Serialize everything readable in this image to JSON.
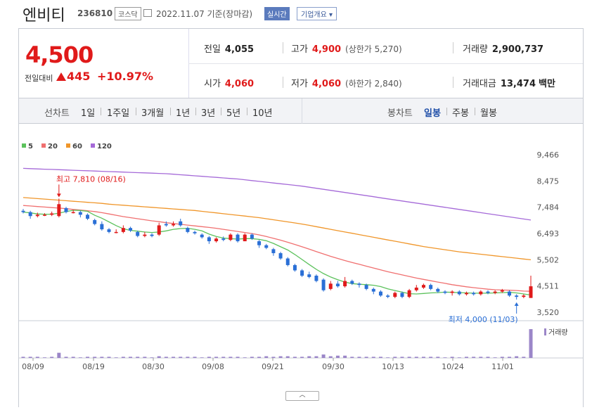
{
  "header": {
    "stock_name": "엔비티",
    "stock_code": "236810",
    "market": "코스닥",
    "date": "2022.11.07 기준(장마감)",
    "realtime_label": "실시간",
    "overview_label": "기업개요 ▾"
  },
  "quote": {
    "price": "4,500",
    "change_label": "전일대비",
    "change": "445",
    "change_pct": "+10.97%",
    "prev_close_label": "전일",
    "prev_close": "4,055",
    "high_label": "고가",
    "high": "4,900",
    "upper_limit": "(상한가 5,270)",
    "volume_label": "거래량",
    "volume": "2,900,737",
    "open_label": "시가",
    "open": "4,060",
    "low_label": "저가",
    "low": "4,060",
    "lower_limit": "(하한가 2,840)",
    "amount_label": "거래대금",
    "amount": "13,474",
    "amount_unit": "백만"
  },
  "tabs": {
    "line_label": "선차트",
    "line_periods": [
      "1일",
      "1주일",
      "3개월",
      "1년",
      "3년",
      "5년",
      "10년"
    ],
    "candle_label": "봉차트",
    "candle_periods": [
      "일봉",
      "주봉",
      "월봉"
    ],
    "active_candle": "일봉"
  },
  "colors": {
    "up": "#e01a1a",
    "down": "#2a6fd6",
    "ma5": "#5cc25c",
    "ma20": "#f07070",
    "ma60": "#f0962a",
    "ma120": "#a56ad8",
    "volume": "#9b86c8"
  },
  "chart_data": {
    "type": "candlestick",
    "legend": [
      {
        "name": "5",
        "color": "#5cc25c"
      },
      {
        "name": "20",
        "color": "#f07070"
      },
      {
        "name": "60",
        "color": "#f0962a"
      },
      {
        "name": "120",
        "color": "#a56ad8"
      }
    ],
    "y_ticks": [
      "9,466",
      "8,475",
      "7,484",
      "6,493",
      "5,502",
      "4,511",
      "3,520"
    ],
    "ylim": [
      3520,
      9466
    ],
    "x_ticks": [
      "08/09",
      "08/19",
      "08/30",
      "09/08",
      "09/21",
      "09/30",
      "10/13",
      "10/24",
      "11/01"
    ],
    "annotations": {
      "high": "최고 7,810 (08/16)",
      "low": "최저 4,000 (11/03)"
    },
    "volume_label": "거래량",
    "candles": [
      {
        "o": 7350,
        "c": 7300,
        "h": 7420,
        "l": 7250
      },
      {
        "o": 7300,
        "c": 7150,
        "h": 7350,
        "l": 7050
      },
      {
        "o": 7150,
        "c": 7200,
        "h": 7280,
        "l": 7100
      },
      {
        "o": 7200,
        "c": 7200,
        "h": 7260,
        "l": 7150
      },
      {
        "o": 7200,
        "c": 7250,
        "h": 7320,
        "l": 7150
      },
      {
        "o": 7150,
        "c": 7600,
        "h": 7810,
        "l": 7100
      },
      {
        "o": 7450,
        "c": 7300,
        "h": 7500,
        "l": 7250
      },
      {
        "o": 7300,
        "c": 7300,
        "h": 7380,
        "l": 7250
      },
      {
        "o": 7300,
        "c": 7200,
        "h": 7350,
        "l": 7100
      },
      {
        "o": 7200,
        "c": 7050,
        "h": 7250,
        "l": 7000
      },
      {
        "o": 7000,
        "c": 6850,
        "h": 7050,
        "l": 6800
      },
      {
        "o": 6850,
        "c": 6650,
        "h": 6950,
        "l": 6600
      },
      {
        "o": 6650,
        "c": 6550,
        "h": 6700,
        "l": 6500
      },
      {
        "o": 6550,
        "c": 6550,
        "h": 6650,
        "l": 6500
      },
      {
        "o": 6550,
        "c": 6700,
        "h": 6800,
        "l": 6500
      },
      {
        "o": 6700,
        "c": 6600,
        "h": 6750,
        "l": 6550
      },
      {
        "o": 6550,
        "c": 6400,
        "h": 6600,
        "l": 6350
      },
      {
        "o": 6400,
        "c": 6450,
        "h": 6550,
        "l": 6350
      },
      {
        "o": 6450,
        "c": 6400,
        "h": 6500,
        "l": 6350
      },
      {
        "o": 6450,
        "c": 6800,
        "h": 6900,
        "l": 6400
      },
      {
        "o": 6850,
        "c": 6800,
        "h": 6950,
        "l": 6750
      },
      {
        "o": 6800,
        "c": 6850,
        "h": 6950,
        "l": 6750
      },
      {
        "o": 6950,
        "c": 6800,
        "h": 7050,
        "l": 6750
      },
      {
        "o": 6700,
        "c": 6550,
        "h": 6750,
        "l": 6500
      },
      {
        "o": 6550,
        "c": 6500,
        "h": 6600,
        "l": 6450
      },
      {
        "o": 6450,
        "c": 6350,
        "h": 6500,
        "l": 6300
      },
      {
        "o": 6350,
        "c": 6200,
        "h": 6400,
        "l": 6100
      },
      {
        "o": 6200,
        "c": 6300,
        "h": 6350,
        "l": 6150
      },
      {
        "o": 6300,
        "c": 6250,
        "h": 6380,
        "l": 6200
      },
      {
        "o": 6250,
        "c": 6450,
        "h": 6500,
        "l": 6200
      },
      {
        "o": 6450,
        "c": 6200,
        "h": 6500,
        "l": 6150
      },
      {
        "o": 6200,
        "c": 6450,
        "h": 6500,
        "l": 6200
      },
      {
        "o": 6450,
        "c": 6300,
        "h": 6500,
        "l": 6250
      },
      {
        "o": 6200,
        "c": 6050,
        "h": 6250,
        "l": 5950
      },
      {
        "o": 6050,
        "c": 5950,
        "h": 6100,
        "l": 5900
      },
      {
        "o": 5900,
        "c": 5750,
        "h": 5950,
        "l": 5650
      },
      {
        "o": 5750,
        "c": 5550,
        "h": 5800,
        "l": 5500
      },
      {
        "o": 5550,
        "c": 5300,
        "h": 5600,
        "l": 5250
      },
      {
        "o": 5300,
        "c": 5100,
        "h": 5350,
        "l": 5050
      },
      {
        "o": 5100,
        "c": 4900,
        "h": 5150,
        "l": 4850
      },
      {
        "o": 4950,
        "c": 4850,
        "h": 5050,
        "l": 4800
      },
      {
        "o": 4900,
        "c": 4700,
        "h": 4950,
        "l": 4650
      },
      {
        "o": 4750,
        "c": 4350,
        "h": 4800,
        "l": 4300
      },
      {
        "o": 4400,
        "c": 4600,
        "h": 4700,
        "l": 4350
      },
      {
        "o": 4600,
        "c": 4500,
        "h": 4700,
        "l": 4450
      },
      {
        "o": 4500,
        "c": 4700,
        "h": 4850,
        "l": 4450
      },
      {
        "o": 4700,
        "c": 4600,
        "h": 4750,
        "l": 4550
      },
      {
        "o": 4600,
        "c": 4550,
        "h": 4650,
        "l": 4450
      },
      {
        "o": 4550,
        "c": 4400,
        "h": 4600,
        "l": 4350
      },
      {
        "o": 4400,
        "c": 4300,
        "h": 4450,
        "l": 4200
      },
      {
        "o": 4300,
        "c": 4150,
        "h": 4350,
        "l": 4100
      },
      {
        "o": 4150,
        "c": 4100,
        "h": 4200,
        "l": 4050
      },
      {
        "o": 4100,
        "c": 4250,
        "h": 4300,
        "l": 4050
      },
      {
        "o": 4250,
        "c": 4100,
        "h": 4300,
        "l": 4050
      },
      {
        "o": 4100,
        "c": 4350,
        "h": 4400,
        "l": 4050
      },
      {
        "o": 4350,
        "c": 4450,
        "h": 4550,
        "l": 4300
      },
      {
        "o": 4450,
        "c": 4550,
        "h": 4600,
        "l": 4400
      },
      {
        "o": 4550,
        "c": 4400,
        "h": 4600,
        "l": 4350
      },
      {
        "o": 4400,
        "c": 4300,
        "h": 4450,
        "l": 4250
      },
      {
        "o": 4300,
        "c": 4250,
        "h": 4350,
        "l": 4200
      },
      {
        "o": 4250,
        "c": 4300,
        "h": 4350,
        "l": 4150
      },
      {
        "o": 4300,
        "c": 4200,
        "h": 4350,
        "l": 4150
      },
      {
        "o": 4200,
        "c": 4250,
        "h": 4300,
        "l": 4150
      },
      {
        "o": 4250,
        "c": 4200,
        "h": 4300,
        "l": 4150
      },
      {
        "o": 4200,
        "c": 4300,
        "h": 4350,
        "l": 4150
      },
      {
        "o": 4300,
        "c": 4250,
        "h": 4350,
        "l": 4200
      },
      {
        "o": 4250,
        "c": 4300,
        "h": 4350,
        "l": 4200
      },
      {
        "o": 4300,
        "c": 4350,
        "h": 4400,
        "l": 4250
      },
      {
        "o": 4300,
        "c": 4150,
        "h": 4350,
        "l": 4100
      },
      {
        "o": 4150,
        "c": 4100,
        "h": 4200,
        "l": 4000
      },
      {
        "o": 4100,
        "c": 4150,
        "h": 4200,
        "l": 4050
      },
      {
        "o": 4060,
        "c": 4500,
        "h": 4900,
        "l": 4060
      }
    ],
    "volumes": [
      2,
      2,
      2,
      1,
      2,
      9,
      2,
      2,
      1,
      2,
      2,
      2,
      2,
      1,
      2,
      2,
      2,
      2,
      1,
      3,
      2,
      2,
      2,
      2,
      2,
      1,
      2,
      2,
      2,
      2,
      2,
      1,
      2,
      2,
      3,
      2,
      3,
      3,
      2,
      2,
      3,
      3,
      6,
      3,
      4,
      4,
      2,
      2,
      2,
      2,
      2,
      1,
      2,
      2,
      2,
      2,
      2,
      2,
      2,
      1,
      2,
      1,
      2,
      2,
      2,
      2,
      1,
      2,
      2,
      3,
      2,
      50
    ],
    "ma5": [
      7300,
      7270,
      7230,
      7220,
      7220,
      7260,
      7320,
      7370,
      7360,
      7330,
      7180,
      7070,
      6930,
      6790,
      6670,
      6610,
      6580,
      6550,
      6530,
      6550,
      6590,
      6650,
      6680,
      6690,
      6650,
      6590,
      6470,
      6380,
      6320,
      6300,
      6280,
      6300,
      6300,
      6270,
      6220,
      6120,
      5990,
      5870,
      5700,
      5510,
      5320,
      5140,
      4980,
      4850,
      4750,
      4660,
      4600,
      4580,
      4560,
      4540,
      4490,
      4400,
      4340,
      4280,
      4220,
      4210,
      4230,
      4250,
      4260,
      4280,
      4270,
      4260,
      4250,
      4240,
      4240,
      4240,
      4250,
      4260,
      4270,
      4250,
      4210,
      4170
    ],
    "ma20": [
      7550,
      7530,
      7510,
      7490,
      7470,
      7450,
      7430,
      7400,
      7380,
      7350,
      7320,
      7280,
      7230,
      7180,
      7130,
      7090,
      7050,
      7010,
      6970,
      6940,
      6900,
      6870,
      6840,
      6810,
      6780,
      6750,
      6720,
      6690,
      6650,
      6610,
      6570,
      6530,
      6490,
      6440,
      6380,
      6310,
      6240,
      6160,
      6080,
      5990,
      5900,
      5810,
      5720,
      5630,
      5550,
      5470,
      5400,
      5330,
      5260,
      5190,
      5120,
      5050,
      4990,
      4930,
      4870,
      4810,
      4760,
      4710,
      4660,
      4610,
      4560,
      4520,
      4480,
      4450,
      4420,
      4390,
      4370,
      4360,
      4350,
      4340,
      4320,
      4310
    ],
    "ma60": [
      7850,
      7830,
      7810,
      7790,
      7770,
      7750,
      7730,
      7710,
      7690,
      7670,
      7650,
      7630,
      7600,
      7580,
      7560,
      7540,
      7520,
      7500,
      7480,
      7460,
      7440,
      7420,
      7400,
      7380,
      7360,
      7330,
      7300,
      7270,
      7240,
      7210,
      7180,
      7150,
      7120,
      7090,
      7050,
      7010,
      6970,
      6930,
      6890,
      6850,
      6800,
      6750,
      6700,
      6650,
      6600,
      6550,
      6500,
      6450,
      6400,
      6350,
      6300,
      6250,
      6200,
      6150,
      6100,
      6050,
      6000,
      5960,
      5920,
      5880,
      5840,
      5800,
      5770,
      5740,
      5710,
      5680,
      5650,
      5620,
      5590,
      5560,
      5530,
      5500
    ],
    "ma120": [
      8950,
      8940,
      8930,
      8920,
      8910,
      8900,
      8890,
      8880,
      8870,
      8860,
      8850,
      8840,
      8830,
      8820,
      8810,
      8800,
      8790,
      8780,
      8770,
      8760,
      8750,
      8730,
      8710,
      8690,
      8670,
      8650,
      8630,
      8610,
      8590,
      8570,
      8550,
      8520,
      8490,
      8460,
      8430,
      8400,
      8370,
      8340,
      8310,
      8280,
      8240,
      8200,
      8160,
      8120,
      8080,
      8040,
      8000,
      7960,
      7920,
      7880,
      7840,
      7800,
      7760,
      7720,
      7680,
      7640,
      7600,
      7560,
      7520,
      7480,
      7440,
      7400,
      7360,
      7320,
      7280,
      7240,
      7200,
      7160,
      7120,
      7080,
      7040,
      7000
    ]
  }
}
